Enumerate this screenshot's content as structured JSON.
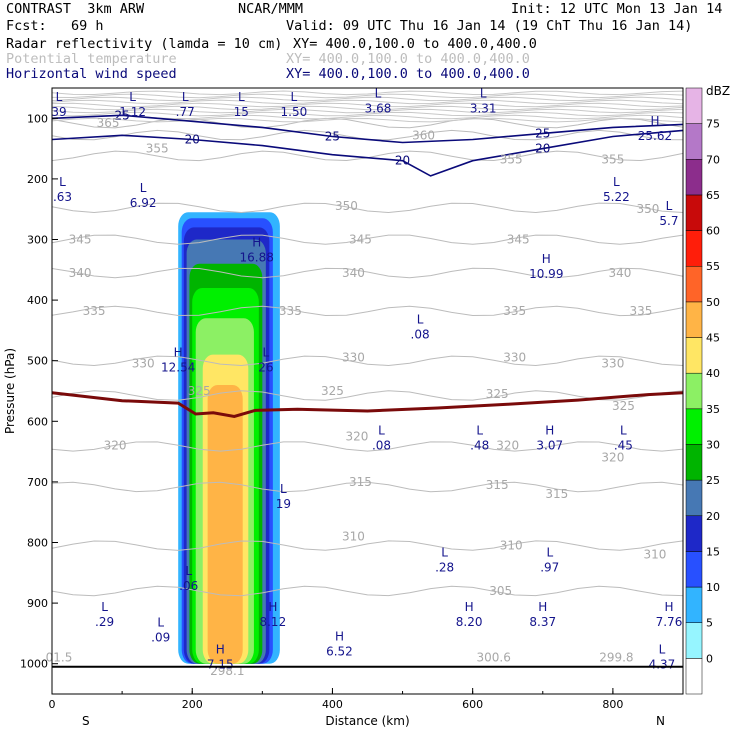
{
  "header": {
    "model": "CONTRAST  3km ARW",
    "center": "NCAR/MMM",
    "init": "Init: 12 UTC Mon 13 Jan 14",
    "fcst": "Fcst:   69 h",
    "valid": "Valid: 09 UTC Thu 16 Jan 14 (19 ChT Thu 16 Jan 14)",
    "field1": "Radar reflectivity (lamda = 10 cm)",
    "field1_xy": "XY= 400.0,100.0 to 400.0,400.0",
    "field2": "Potential temperature",
    "field2_xy": "XY= 400.0,100.0 to 400.0,400.0",
    "field3": "Horizontal wind speed",
    "field3_xy": "XY= 400.0,100.0 to 400.0,400.0"
  },
  "chart_data": {
    "type": "heatmap",
    "xlabel": "Distance (km)",
    "ylabel": "Pressure (hPa)",
    "xlim": [
      0,
      900
    ],
    "ylim": [
      1050,
      50
    ],
    "x_ticks": [
      0,
      200,
      400,
      600,
      800
    ],
    "y_ticks": [
      100,
      200,
      300,
      400,
      500,
      600,
      700,
      800,
      900,
      1000
    ],
    "x_end_labels": {
      "left": "S",
      "right": "N"
    },
    "colorbar": {
      "unit": "dBZ",
      "levels": [
        0,
        5,
        10,
        15,
        20,
        25,
        30,
        35,
        40,
        45,
        50,
        55,
        60,
        65,
        70,
        75
      ],
      "colors": [
        "#ffffff",
        "#96f5ff",
        "#32b4ff",
        "#2850ff",
        "#1e28c8",
        "#4678b4",
        "#00b400",
        "#00f000",
        "#8cf064",
        "#ffe664",
        "#ffb446",
        "#ff6428",
        "#ff1e0a",
        "#c80a0a",
        "#8c2d8c",
        "#b478c8",
        "#e6b4e6"
      ]
    },
    "reflectivity_cells": [
      {
        "level": 5,
        "x": [
          180,
          325
        ],
        "p": [
          255,
          1000
        ]
      },
      {
        "level": 10,
        "x": [
          185,
          315
        ],
        "p": [
          265,
          1000
        ]
      },
      {
        "level": 15,
        "x": [
          188,
          310
        ],
        "p": [
          280,
          1000
        ]
      },
      {
        "level": 20,
        "x": [
          192,
          305
        ],
        "p": [
          300,
          1000
        ]
      },
      {
        "level": 25,
        "x": [
          196,
          300
        ],
        "p": [
          340,
          1000
        ]
      },
      {
        "level": 30,
        "x": [
          200,
          295
        ],
        "p": [
          380,
          1000
        ]
      },
      {
        "level": 35,
        "x": [
          205,
          288
        ],
        "p": [
          430,
          1000
        ]
      },
      {
        "level": 40,
        "x": [
          215,
          280
        ],
        "p": [
          490,
          1000
        ]
      },
      {
        "level": 45,
        "x": [
          222,
          272
        ],
        "p": [
          540,
          1000
        ]
      }
    ],
    "wind_speed_contours": [
      {
        "value": 20,
        "x": [
          0,
          100,
          200,
          300,
          400,
          500,
          540,
          600,
          700,
          800,
          900
        ],
        "p": [
          135,
          128,
          135,
          145,
          160,
          170,
          195,
          170,
          150,
          130,
          120
        ]
      },
      {
        "value": 25,
        "x": [
          0,
          100,
          200,
          300,
          400,
          500,
          600,
          700,
          800,
          900
        ],
        "p": [
          100,
          95,
          105,
          115,
          130,
          140,
          135,
          125,
          115,
          110
        ]
      }
    ],
    "theta_labels": [
      {
        "text": "365",
        "x": 80,
        "p": 108
      },
      {
        "text": "360",
        "x": 530,
        "p": 128
      },
      {
        "text": "355",
        "x": 150,
        "p": 150
      },
      {
        "text": "355",
        "x": 655,
        "p": 168
      },
      {
        "text": "355",
        "x": 800,
        "p": 168
      },
      {
        "text": "350",
        "x": 420,
        "p": 245
      },
      {
        "text": "350",
        "x": 850,
        "p": 250
      },
      {
        "text": "345",
        "x": 40,
        "p": 300
      },
      {
        "text": "345",
        "x": 440,
        "p": 300
      },
      {
        "text": "345",
        "x": 665,
        "p": 300
      },
      {
        "text": "340",
        "x": 40,
        "p": 355
      },
      {
        "text": "340",
        "x": 430,
        "p": 355
      },
      {
        "text": "340",
        "x": 810,
        "p": 355
      },
      {
        "text": "335",
        "x": 60,
        "p": 418
      },
      {
        "text": "335",
        "x": 340,
        "p": 418
      },
      {
        "text": "335",
        "x": 660,
        "p": 418
      },
      {
        "text": "335",
        "x": 840,
        "p": 418
      },
      {
        "text": "330",
        "x": 130,
        "p": 505
      },
      {
        "text": "330",
        "x": 430,
        "p": 495
      },
      {
        "text": "330",
        "x": 660,
        "p": 495
      },
      {
        "text": "330",
        "x": 800,
        "p": 505
      },
      {
        "text": "325",
        "x": 210,
        "p": 550
      },
      {
        "text": "325",
        "x": 400,
        "p": 550
      },
      {
        "text": "325",
        "x": 635,
        "p": 555
      },
      {
        "text": "325",
        "x": 815,
        "p": 575
      },
      {
        "text": "320",
        "x": 90,
        "p": 640
      },
      {
        "text": "320",
        "x": 435,
        "p": 625
      },
      {
        "text": "320",
        "x": 650,
        "p": 640
      },
      {
        "text": "320",
        "x": 800,
        "p": 660
      },
      {
        "text": "315",
        "x": 440,
        "p": 700
      },
      {
        "text": "315",
        "x": 635,
        "p": 705
      },
      {
        "text": "315",
        "x": 720,
        "p": 720
      },
      {
        "text": "310",
        "x": 430,
        "p": 790
      },
      {
        "text": "310",
        "x": 655,
        "p": 805
      },
      {
        "text": "310",
        "x": 860,
        "p": 820
      },
      {
        "text": "305",
        "x": 640,
        "p": 880
      }
    ],
    "theta_extremes": [
      {
        "text": "01.5",
        "x": 10,
        "p": 990
      },
      {
        "text": "298.1",
        "x": 250,
        "p": 1012
      },
      {
        "text": "300.6",
        "x": 630,
        "p": 990
      },
      {
        "text": "299.8",
        "x": 805,
        "p": 990
      }
    ],
    "zero_isotherm": {
      "x": [
        0,
        100,
        180,
        205,
        230,
        260,
        290,
        350,
        450,
        550,
        650,
        750,
        850,
        900
      ],
      "p": [
        553,
        566,
        570,
        588,
        586,
        592,
        582,
        580,
        583,
        578,
        572,
        565,
        556,
        553
      ]
    },
    "extrema": [
      {
        "kind": "L",
        "value": "39",
        "x": 10,
        "p": 78
      },
      {
        "kind": "L",
        "value": "1.12",
        "x": 115,
        "p": 78
      },
      {
        "kind": "L",
        "value": ".77",
        "x": 190,
        "p": 78
      },
      {
        "kind": "L",
        "value": "15",
        "x": 270,
        "p": 78
      },
      {
        "kind": "L",
        "value": "1.50",
        "x": 345,
        "p": 78
      },
      {
        "kind": "L",
        "value": "3.68",
        "x": 465,
        "p": 72
      },
      {
        "kind": "L",
        "value": "3.31",
        "x": 615,
        "p": 72
      },
      {
        "kind": "H",
        "value": "25.62",
        "x": 860,
        "p": 118
      },
      {
        "kind": "L",
        "value": ".63",
        "x": 15,
        "p": 218
      },
      {
        "kind": "L",
        "value": "6.92",
        "x": 130,
        "p": 228
      },
      {
        "kind": "L",
        "value": "5.22",
        "x": 805,
        "p": 218
      },
      {
        "kind": "L",
        "value": "5.7",
        "x": 880,
        "p": 258
      },
      {
        "kind": "H",
        "value": "16.88",
        "x": 292,
        "p": 318
      },
      {
        "kind": "H",
        "value": "10.99",
        "x": 705,
        "p": 345
      },
      {
        "kind": "L",
        "value": ".08",
        "x": 525,
        "p": 445
      },
      {
        "kind": "H",
        "value": "12.54",
        "x": 180,
        "p": 500
      },
      {
        "kind": "L",
        "value": "26",
        "x": 305,
        "p": 500
      },
      {
        "kind": "L",
        "value": ".08",
        "x": 470,
        "p": 628
      },
      {
        "kind": "L",
        "value": ".48",
        "x": 610,
        "p": 628
      },
      {
        "kind": "H",
        "value": "3.07",
        "x": 710,
        "p": 628
      },
      {
        "kind": "L",
        "value": ".45",
        "x": 815,
        "p": 628
      },
      {
        "kind": "L",
        "value": "19",
        "x": 330,
        "p": 725
      },
      {
        "kind": "L",
        "value": ".28",
        "x": 560,
        "p": 830
      },
      {
        "kind": "L",
        "value": ".97",
        "x": 710,
        "p": 830
      },
      {
        "kind": "L",
        "value": ".06",
        "x": 195,
        "p": 860
      },
      {
        "kind": "L",
        "value": ".29",
        "x": 75,
        "p": 920
      },
      {
        "kind": "L",
        "value": ".09",
        "x": 155,
        "p": 945
      },
      {
        "kind": "H",
        "value": "8.12",
        "x": 315,
        "p": 920
      },
      {
        "kind": "H",
        "value": "8.20",
        "x": 595,
        "p": 920
      },
      {
        "kind": "H",
        "value": "8.37",
        "x": 700,
        "p": 920
      },
      {
        "kind": "H",
        "value": "7.76",
        "x": 880,
        "p": 920
      },
      {
        "kind": "H",
        "value": "6.52",
        "x": 410,
        "p": 968
      },
      {
        "kind": "H",
        "value": "7.15",
        "x": 240,
        "p": 990
      },
      {
        "kind": "L",
        "value": "4.37",
        "x": 870,
        "p": 990
      }
    ]
  }
}
